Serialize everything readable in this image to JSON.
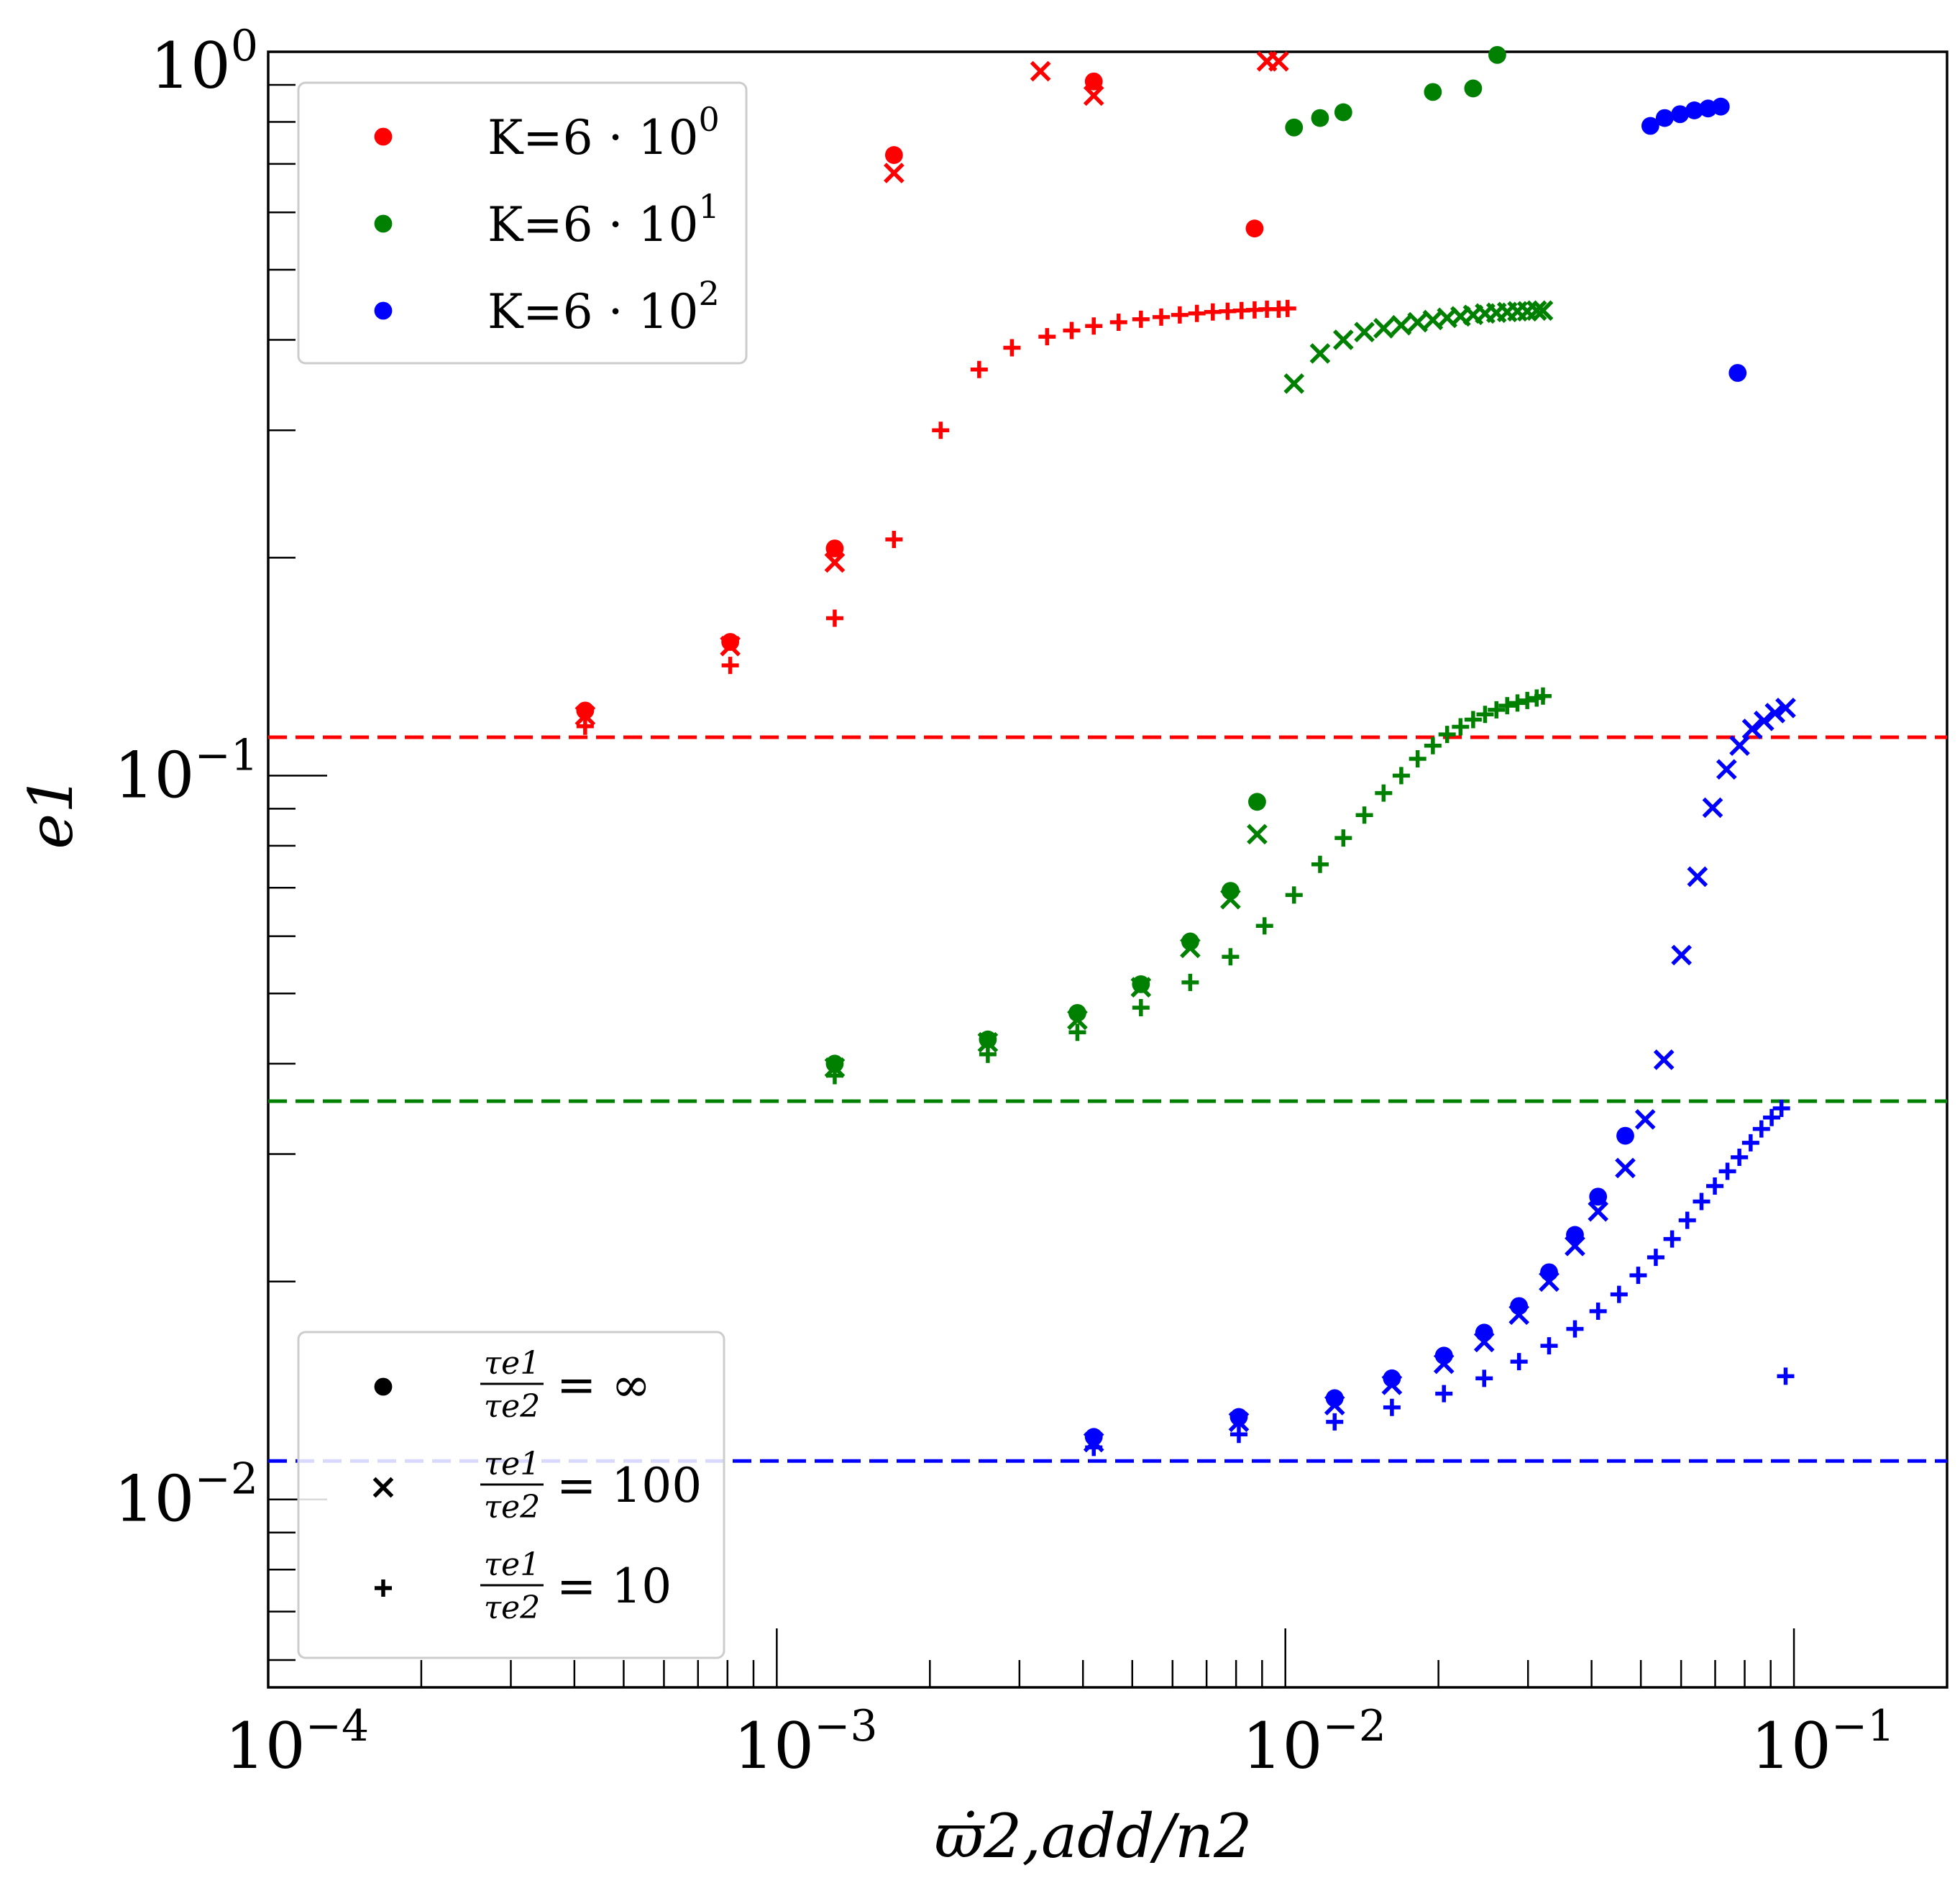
{
  "chart_data": {
    "type": "scatter",
    "xscale": "log",
    "yscale": "log",
    "xlim": [
      0.0001,
      0.2
    ],
    "ylim": [
      0.0055,
      1.0
    ],
    "xlabel": "ϖ̇2,add/n2",
    "ylabel": "e1",
    "grid": false,
    "x_tick_labels": [
      {
        "value": 0.0001,
        "base": "10",
        "exp": "−4"
      },
      {
        "value": 0.001,
        "base": "10",
        "exp": "−3"
      },
      {
        "value": 0.01,
        "base": "10",
        "exp": "−2"
      },
      {
        "value": 0.1,
        "base": "10",
        "exp": "−1"
      }
    ],
    "y_tick_labels": [
      {
        "value": 0.01,
        "base": "10",
        "exp": "−2"
      },
      {
        "value": 0.1,
        "base": "10",
        "exp": "−1"
      },
      {
        "value": 1.0,
        "base": "10",
        "exp": "0"
      }
    ],
    "colors": {
      "red": "#ff0000",
      "green": "#008000",
      "blue": "#0000ff"
    },
    "legend_K": {
      "placement": "upper left",
      "entries": [
        {
          "text": "K=6 · 10",
          "exp": "0",
          "color": "#ff0000"
        },
        {
          "text": "K=6 · 10",
          "exp": "1",
          "color": "#008000"
        },
        {
          "text": "K=6 · 10",
          "exp": "2",
          "color": "#0000ff"
        }
      ]
    },
    "legend_tau": {
      "placement": "lower left",
      "entries": [
        {
          "marker": "circle",
          "num": "τe1",
          "den": "τe2",
          "rhs": "= ∞"
        },
        {
          "marker": "x",
          "num": "τe1",
          "den": "τe2",
          "rhs": "= 100"
        },
        {
          "marker": "plus",
          "num": "τe1",
          "den": "τe2",
          "rhs": "= 10"
        }
      ]
    },
    "hlines": [
      {
        "y": 0.113,
        "color": "#ff0000",
        "style": "dashed"
      },
      {
        "y": 0.0355,
        "color": "#008000",
        "style": "dashed"
      },
      {
        "y": 0.0113,
        "color": "#0000ff",
        "style": "dashed"
      }
    ],
    "series": [
      {
        "color": "#ff0000",
        "marker": "circle",
        "x": [
          0.00042,
          0.00081,
          0.0013,
          0.0017,
          0.0042,
          0.0087
        ],
        "y": [
          0.123,
          0.153,
          0.206,
          0.72,
          0.91,
          0.57
        ]
      },
      {
        "color": "#ff0000",
        "marker": "x",
        "x": [
          0.00042,
          0.00081,
          0.0013,
          0.0017,
          0.0033,
          0.0042,
          0.0092,
          0.0097
        ],
        "y": [
          0.121,
          0.151,
          0.197,
          0.68,
          0.94,
          0.87,
          0.97,
          0.97
        ]
      },
      {
        "color": "#ff0000",
        "marker": "plus",
        "x": [
          0.00042,
          0.00081,
          0.0013,
          0.0017,
          0.0021,
          0.0025,
          0.0029,
          0.0034,
          0.0038,
          0.0042,
          0.0047,
          0.0052,
          0.0057,
          0.0062,
          0.0067,
          0.0072,
          0.0077,
          0.0082,
          0.0087,
          0.0092,
          0.0097,
          0.0101
        ],
        "y": [
          0.117,
          0.142,
          0.165,
          0.212,
          0.3,
          0.364,
          0.39,
          0.404,
          0.412,
          0.418,
          0.423,
          0.427,
          0.43,
          0.433,
          0.435,
          0.437,
          0.438,
          0.439,
          0.44,
          0.441,
          0.441,
          0.442
        ]
      },
      {
        "color": "#008000",
        "marker": "circle",
        "x": [
          0.0013,
          0.0026,
          0.0039,
          0.0052,
          0.0065,
          0.0078,
          0.0088,
          0.0104,
          0.0117,
          0.013,
          0.0195,
          0.0234,
          0.0261
        ],
        "y": [
          0.04,
          0.0432,
          0.047,
          0.0515,
          0.059,
          0.0693,
          0.092,
          0.786,
          0.81,
          0.825,
          0.88,
          0.89,
          0.99
        ]
      },
      {
        "color": "#008000",
        "marker": "x",
        "x": [
          0.0013,
          0.0026,
          0.0039,
          0.0052,
          0.0065,
          0.0078,
          0.0088,
          0.0104,
          0.0117,
          0.013,
          0.0143,
          0.0156,
          0.0169,
          0.0182,
          0.0195,
          0.0208,
          0.0221,
          0.0234,
          0.0247,
          0.026,
          0.0273,
          0.0286,
          0.0299,
          0.0312,
          0.0321
        ],
        "y": [
          0.0395,
          0.0428,
          0.046,
          0.051,
          0.0578,
          0.0675,
          0.083,
          0.348,
          0.383,
          0.4,
          0.41,
          0.415,
          0.419,
          0.423,
          0.426,
          0.429,
          0.431,
          0.433,
          0.435,
          0.436,
          0.437,
          0.438,
          0.438,
          0.439,
          0.439
        ]
      },
      {
        "color": "#008000",
        "marker": "plus",
        "x": [
          0.0013,
          0.0026,
          0.0039,
          0.0052,
          0.0065,
          0.0078,
          0.0091,
          0.0104,
          0.0117,
          0.013,
          0.0143,
          0.0156,
          0.0169,
          0.0182,
          0.0195,
          0.0208,
          0.0221,
          0.0234,
          0.0247,
          0.026,
          0.0273,
          0.0286,
          0.0299,
          0.0312,
          0.0321
        ],
        "y": [
          0.0385,
          0.0412,
          0.0442,
          0.0478,
          0.0518,
          0.0562,
          0.062,
          0.0684,
          0.0754,
          0.082,
          0.0882,
          0.0946,
          0.1,
          0.1055,
          0.11,
          0.114,
          0.1168,
          0.1195,
          0.1215,
          0.1233,
          0.1249,
          0.126,
          0.127,
          0.128,
          0.1288
        ]
      },
      {
        "color": "#0000ff",
        "marker": "circle",
        "x": [
          0.0042,
          0.0081,
          0.0125,
          0.0162,
          0.0205,
          0.0246,
          0.0288,
          0.033,
          0.0371,
          0.0412,
          0.0466,
          0.0522,
          0.0557,
          0.0597,
          0.0637,
          0.0678,
          0.0718,
          0.0775
        ],
        "y": [
          0.0122,
          0.013,
          0.0138,
          0.0147,
          0.0158,
          0.017,
          0.0185,
          0.0206,
          0.0232,
          0.0262,
          0.0318,
          0.79,
          0.81,
          0.82,
          0.83,
          0.835,
          0.84,
          0.36
        ]
      },
      {
        "color": "#0000ff",
        "marker": "x",
        "x": [
          0.0042,
          0.0081,
          0.0125,
          0.0162,
          0.0205,
          0.0246,
          0.0288,
          0.033,
          0.0371,
          0.0412,
          0.0466,
          0.051,
          0.0555,
          0.0601,
          0.0646,
          0.0692,
          0.0737,
          0.0782,
          0.0828,
          0.0873,
          0.0918,
          0.0963
        ],
        "y": [
          0.012,
          0.0128,
          0.0135,
          0.0144,
          0.0154,
          0.0165,
          0.018,
          0.02,
          0.0224,
          0.025,
          0.0287,
          0.0335,
          0.0405,
          0.0565,
          0.0725,
          0.0903,
          0.102,
          0.11,
          0.116,
          0.119,
          0.122,
          0.124
        ]
      },
      {
        "color": "#0000ff",
        "marker": "plus",
        "x": [
          0.0042,
          0.0081,
          0.0125,
          0.0162,
          0.0205,
          0.0246,
          0.0288,
          0.033,
          0.0371,
          0.0412,
          0.0453,
          0.0494,
          0.0535,
          0.0576,
          0.0617,
          0.0658,
          0.0699,
          0.074,
          0.0781,
          0.0822,
          0.0863,
          0.0904,
          0.0945,
          0.0963
        ],
        "y": [
          0.0118,
          0.0123,
          0.0128,
          0.0134,
          0.014,
          0.0147,
          0.0155,
          0.0163,
          0.0172,
          0.0182,
          0.0192,
          0.0204,
          0.0216,
          0.0229,
          0.0243,
          0.0258,
          0.0271,
          0.0284,
          0.0297,
          0.0311,
          0.0325,
          0.0337,
          0.0347,
          0.0148
        ]
      }
    ]
  }
}
